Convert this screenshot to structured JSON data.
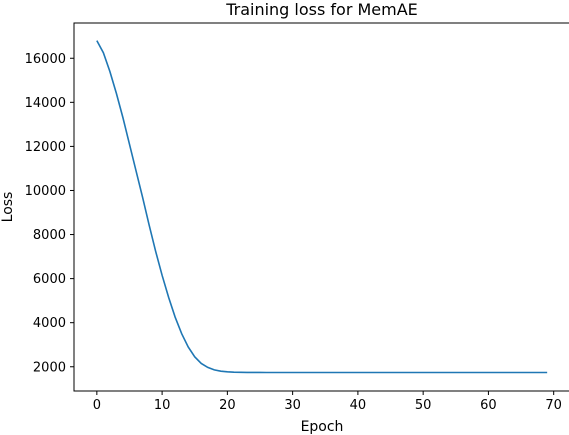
{
  "chart_data": {
    "type": "line",
    "title": "Training loss for MemAE",
    "xlabel": "Epoch",
    "ylabel": "Loss",
    "xlim": [
      -3.5,
      72.5
    ],
    "ylim": [
      900,
      17600
    ],
    "xticks": [
      0,
      10,
      20,
      30,
      40,
      50,
      60,
      70
    ],
    "yticks": [
      2000,
      4000,
      6000,
      8000,
      10000,
      12000,
      14000,
      16000
    ],
    "grid": false,
    "line_color": "#1f77b4",
    "series": [
      {
        "x": [
          0,
          1,
          2,
          3,
          4,
          5,
          6,
          7,
          8,
          9,
          10,
          11,
          12,
          13,
          14,
          15,
          16,
          17,
          18,
          19,
          20,
          21,
          22,
          23,
          24,
          25,
          26,
          27,
          28,
          29,
          30,
          31,
          32,
          33,
          34,
          35,
          36,
          37,
          38,
          39,
          40,
          41,
          42,
          43,
          44,
          45,
          46,
          47,
          48,
          49,
          50,
          51,
          52,
          53,
          54,
          55,
          56,
          57,
          58,
          59,
          60,
          61,
          62,
          63,
          64,
          65,
          66,
          67,
          68,
          69
        ],
        "values": [
          16800,
          16250,
          15400,
          14400,
          13300,
          12100,
          10900,
          9700,
          8450,
          7250,
          6150,
          5150,
          4250,
          3500,
          2900,
          2450,
          2150,
          1970,
          1860,
          1800,
          1770,
          1755,
          1748,
          1744,
          1742,
          1741,
          1740,
          1740,
          1740,
          1740,
          1740,
          1740,
          1740,
          1740,
          1740,
          1740,
          1740,
          1740,
          1740,
          1740,
          1740,
          1740,
          1740,
          1740,
          1740,
          1740,
          1740,
          1740,
          1740,
          1740,
          1740,
          1740,
          1740,
          1740,
          1740,
          1740,
          1740,
          1740,
          1740,
          1740,
          1740,
          1740,
          1740,
          1740,
          1740,
          1740,
          1740,
          1740,
          1740,
          1740
        ]
      }
    ]
  }
}
